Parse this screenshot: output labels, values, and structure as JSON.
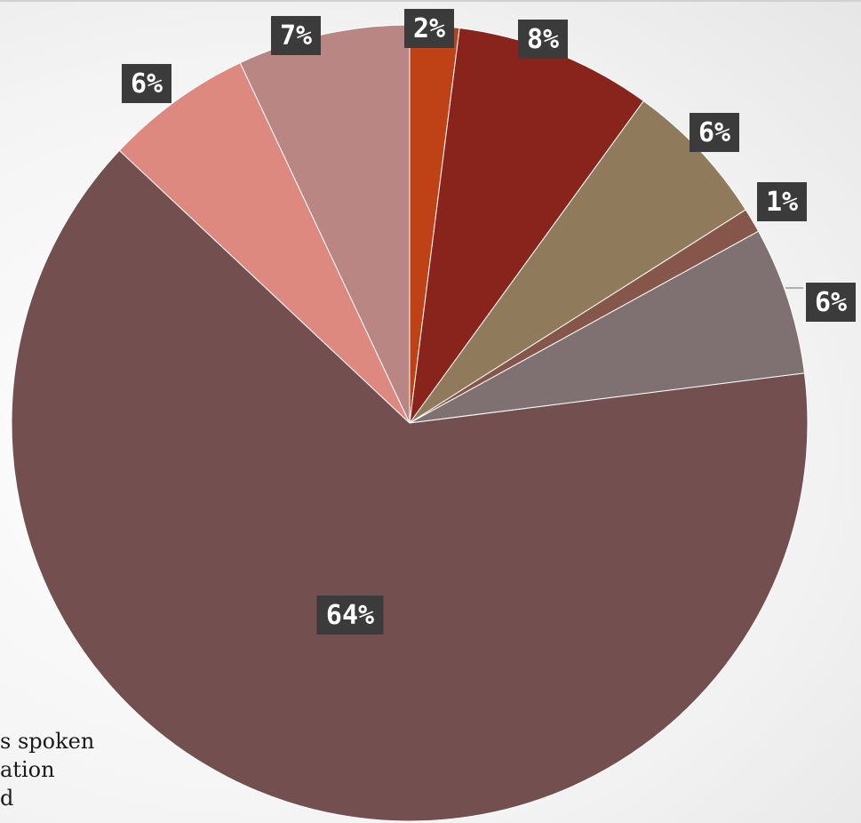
{
  "chart_data": {
    "type": "pie",
    "title": "",
    "slices": [
      {
        "label": "2%",
        "value": 2,
        "color": "#BF4217"
      },
      {
        "label": "8%",
        "value": 8,
        "color": "#89241C"
      },
      {
        "label": "6%",
        "value": 6,
        "color": "#8F7B5C"
      },
      {
        "label": "1%",
        "value": 1,
        "color": "#87564A"
      },
      {
        "label": "6%",
        "value": 6,
        "color": "#7F7071"
      },
      {
        "label": "64%",
        "value": 64,
        "color": "#734F4F"
      },
      {
        "label": "6%",
        "value": 6,
        "color": "#DE8980"
      },
      {
        "label": "7%",
        "value": 7,
        "color": "#B98683"
      }
    ],
    "start_angle_deg": 0,
    "direction": "clockwise",
    "legend": {
      "placement": "bottom-left (clipped)",
      "visible_text": [
        "s spoken",
        "ation",
        "d"
      ]
    }
  }
}
